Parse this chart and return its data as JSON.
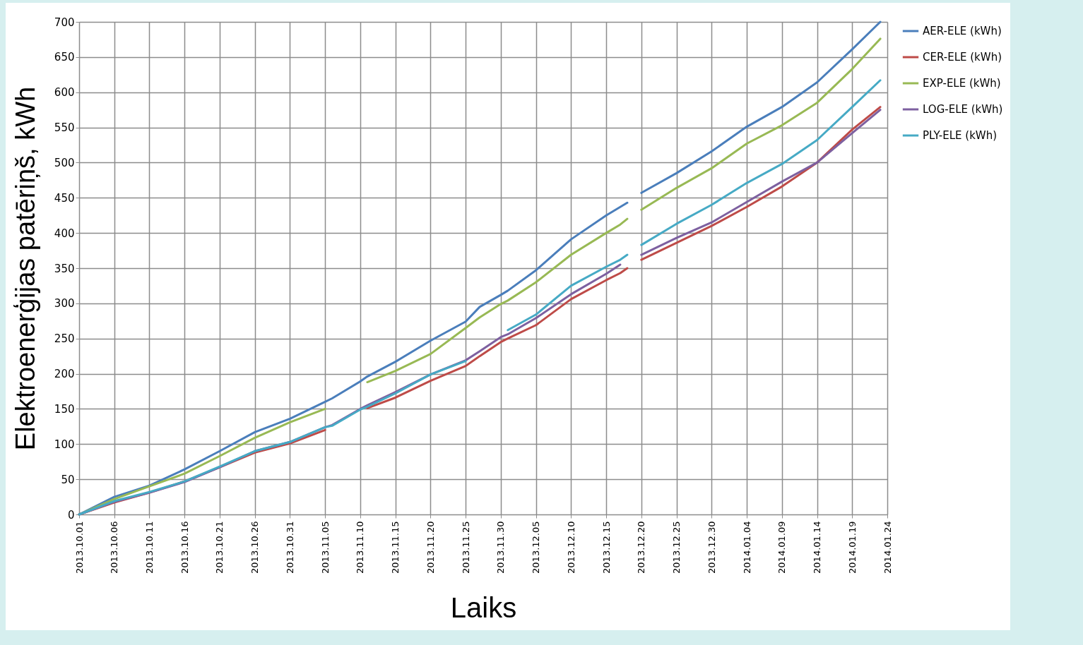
{
  "chart_data": {
    "type": "line",
    "xlabel": "Laiks",
    "ylabel": "Elektroenerģijas patēriņš, kWh",
    "x": [
      "2013-10-01",
      "2013-10-06",
      "2013-10-11",
      "2013-10-16",
      "2013-10-21",
      "2013-10-26",
      "2013-10-31",
      "2013-11-05",
      "2013-11-06",
      "2013-11-10",
      "2013-11-11",
      "2013-11-15",
      "2013-11-20",
      "2013-11-25",
      "2013-11-27",
      "2013-11-30",
      "2013-12-01",
      "2013-12-05",
      "2013-12-10",
      "2013-12-15",
      "2013-12-17",
      "2013-12-18",
      "2013-12-19",
      "2013-12-20",
      "2013-12-25",
      "2013-12-30",
      "2014-01-04",
      "2014-01-09",
      "2014-01-14",
      "2014-01-19",
      "2014-01-23"
    ],
    "series": [
      {
        "name": "AER-ELE (kWh)",
        "color": "#4a7ebb",
        "values": [
          0,
          25,
          41,
          64,
          90,
          117,
          136,
          160,
          165,
          189,
          196,
          217,
          247,
          274,
          295,
          312,
          318,
          347,
          391,
          425,
          437,
          443,
          null,
          457,
          485,
          516,
          551,
          579,
          614,
          661,
          700
        ]
      },
      {
        "name": "CER-ELE (kWh)",
        "color": "#be4b48",
        "values": [
          0,
          17,
          31,
          47,
          67,
          88,
          101,
          120,
          null,
          null,
          151,
          166,
          190,
          211,
          225,
          245,
          250,
          269,
          306,
          333,
          343,
          350,
          null,
          362,
          386,
          410,
          437,
          466,
          500,
          547,
          579
        ]
      },
      {
        "name": "EXP-ELE (kWh)",
        "color": "#98b954",
        "values": [
          0,
          22,
          40,
          58,
          83,
          109,
          131,
          150,
          null,
          null,
          188,
          204,
          228,
          265,
          280,
          299,
          304,
          330,
          369,
          400,
          412,
          420,
          null,
          433,
          464,
          492,
          527,
          553,
          585,
          633,
          676
        ]
      },
      {
        "name": "LOG-ELE (kWh)",
        "color": "#7d60a0",
        "values": [
          0,
          18,
          31,
          46,
          67,
          90,
          103,
          124,
          127,
          150,
          155,
          174,
          199,
          219,
          232,
          252,
          256,
          279,
          313,
          342,
          355,
          null,
          null,
          369,
          393,
          415,
          444,
          473,
          500,
          542,
          575
        ]
      },
      {
        "name": "PLY-ELE (kWh)",
        "color": "#46aac5",
        "values": [
          0,
          19,
          32,
          47,
          68,
          90,
          103,
          124,
          126,
          149,
          153,
          172,
          199,
          218,
          null,
          null,
          262,
          284,
          325,
          352,
          362,
          369,
          null,
          383,
          413,
          440,
          471,
          498,
          532,
          579,
          617
        ]
      }
    ],
    "xlim": [
      "2013-10-01",
      "2014-01-24"
    ],
    "xticks": [
      {
        "value": "2013-10-01",
        "label": "2013.10.01"
      },
      {
        "value": "2013-10-06",
        "label": "2013.10.06"
      },
      {
        "value": "2013-10-11",
        "label": "2013.10.11"
      },
      {
        "value": "2013-10-16",
        "label": "2013.10.16"
      },
      {
        "value": "2013-10-21",
        "label": "2013.10.21"
      },
      {
        "value": "2013-10-26",
        "label": "2013.10.26"
      },
      {
        "value": "2013-10-31",
        "label": "2013.10.31"
      },
      {
        "value": "2013-11-05",
        "label": "2013.11.05"
      },
      {
        "value": "2013-11-10",
        "label": "2013.11.10"
      },
      {
        "value": "2013-11-15",
        "label": "2013.11.15"
      },
      {
        "value": "2013-11-20",
        "label": "2013.11.20"
      },
      {
        "value": "2013-11-25",
        "label": "2013.11.25"
      },
      {
        "value": "2013-11-30",
        "label": "2013.11.30"
      },
      {
        "value": "2013-12-05",
        "label": "2013.12.05"
      },
      {
        "value": "2013-12-10",
        "label": "2013.12.10"
      },
      {
        "value": "2013-12-15",
        "label": "2013.12.15"
      },
      {
        "value": "2013-12-20",
        "label": "2013.12.20"
      },
      {
        "value": "2013-12-25",
        "label": "2013.12.25"
      },
      {
        "value": "2013-12-30",
        "label": "2013.12.30"
      },
      {
        "value": "2014-01-04",
        "label": "2014.01.04"
      },
      {
        "value": "2014-01-09",
        "label": "2014.01.09"
      },
      {
        "value": "2014-01-14",
        "label": "2014.01.14"
      },
      {
        "value": "2014-01-19",
        "label": "2014.01.19"
      },
      {
        "value": "2014-01-24",
        "label": "2014.01.24"
      }
    ],
    "ylim": [
      0,
      700
    ],
    "yticks": [
      0,
      50,
      100,
      150,
      200,
      250,
      300,
      350,
      400,
      450,
      500,
      550,
      600,
      650,
      700
    ],
    "grid": true,
    "legend": "right"
  }
}
